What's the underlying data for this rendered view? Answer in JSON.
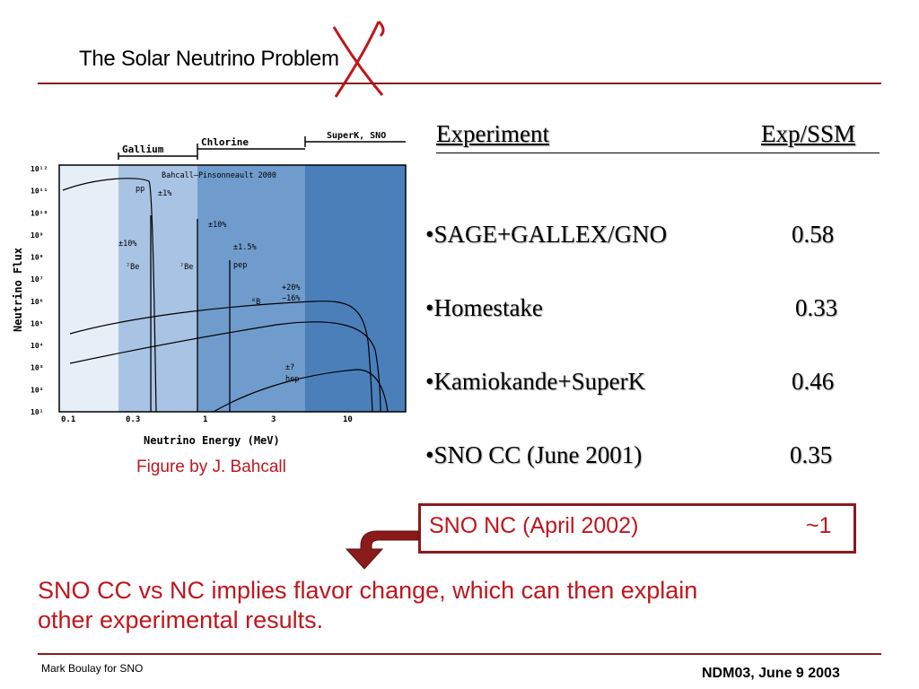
{
  "slide": {
    "title": "The Solar Neutrino Problem",
    "figure_caption": "Figure by J. Bahcall",
    "conclusion": "SNO CC vs NC implies flavor change, which can then explain other experimental results.",
    "footer_left": "Mark Boulay for SNO",
    "footer_right": "NDM03, June 9 2003"
  },
  "table": {
    "header_experiment": "Experiment",
    "header_ratio": "Exp/SSM",
    "rows": [
      {
        "name": "•SAGE+GALLEX/GNO",
        "value": "0.58"
      },
      {
        "name": "•Homestake",
        "value": "0.33"
      },
      {
        "name": "•Kamiokande+SuperK",
        "value": "0.46"
      },
      {
        "name": "•SNO CC (June 2001)",
        "value": "0.35"
      }
    ],
    "highlight": {
      "name": "SNO NC (April 2002)",
      "value": "~1"
    }
  },
  "figure": {
    "xlabel": "Neutrino Energy (MeV)",
    "ylabel": "Neutrino Flux",
    "model_label": "Bahcall–Pinsonneault 2000",
    "bands": [
      {
        "label": "Gallium",
        "color": "#a9c3e4"
      },
      {
        "label": "Chlorine",
        "color": "#6f9ccd"
      },
      {
        "label": "SuperK, SNO",
        "color": "#4b7fba"
      }
    ],
    "xticks": [
      "0.1",
      "0.3",
      "1",
      "3",
      "10"
    ],
    "yticks": [
      "10¹²",
      "10¹¹",
      "10¹⁰",
      "10⁹",
      "10⁸",
      "10⁷",
      "10⁶",
      "10⁵",
      "10⁴",
      "10³",
      "10²",
      "10¹"
    ],
    "annotations": {
      "pp": "pp",
      "pp_unc": "±1%",
      "be7_unc": "±10%",
      "be7_a": "⁷Be",
      "be7_b": "⁷Be",
      "pep_unc": "±1.5%",
      "pep": "pep",
      "line_unc": "±10%",
      "b8_unc_hi": "+20%",
      "b8_unc_lo": "−16%",
      "b8": "⁸B",
      "hep_unc": "±?",
      "hep": "hep"
    }
  },
  "colors": {
    "accent": "#8b1a1a",
    "red_text": "#c0161d"
  }
}
